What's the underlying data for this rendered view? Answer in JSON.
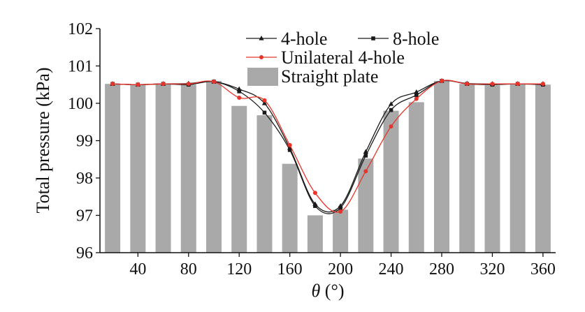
{
  "chart_data": {
    "type": "bar",
    "xlabel_var": "θ",
    "xlabel_unit": " (°)",
    "ylabel": "Total pressure (kPa)",
    "xlim": [
      10,
      370
    ],
    "ylim": [
      96,
      102
    ],
    "xticks": [
      40,
      80,
      120,
      160,
      200,
      240,
      280,
      320,
      360
    ],
    "yticks": [
      96,
      97,
      98,
      99,
      100,
      101,
      102
    ],
    "grid": false,
    "legend_position": "top-right",
    "categories": [
      20,
      40,
      60,
      80,
      100,
      120,
      140,
      160,
      180,
      200,
      220,
      240,
      260,
      280,
      300,
      320,
      340,
      360
    ],
    "series": [
      {
        "name": "4-hole",
        "kind": "line",
        "marker": "triangle",
        "color": "#1a1a1a",
        "values": [
          100.52,
          100.5,
          100.52,
          100.53,
          100.58,
          100.38,
          100.0,
          98.8,
          97.3,
          97.25,
          98.7,
          99.98,
          100.3,
          100.6,
          100.53,
          100.52,
          100.52,
          100.52
        ]
      },
      {
        "name": "8-hole",
        "kind": "line",
        "marker": "square",
        "color": "#1a1a1a",
        "values": [
          100.52,
          100.5,
          100.52,
          100.5,
          100.58,
          100.32,
          99.75,
          98.75,
          97.25,
          97.2,
          98.6,
          99.82,
          100.22,
          100.6,
          100.52,
          100.5,
          100.52,
          100.5
        ]
      },
      {
        "name": "Unilateral 4-hole",
        "kind": "line",
        "marker": "circle",
        "color": "#e8342a",
        "values": [
          100.52,
          100.5,
          100.52,
          100.52,
          100.58,
          100.15,
          100.08,
          98.88,
          97.6,
          97.1,
          98.18,
          99.38,
          100.12,
          100.6,
          100.52,
          100.52,
          100.52,
          100.52
        ]
      },
      {
        "name": "Straight plate",
        "kind": "bar",
        "color": "#a9a9a9",
        "values": [
          100.52,
          100.5,
          100.52,
          100.5,
          100.6,
          99.93,
          99.68,
          98.38,
          97.0,
          97.15,
          98.52,
          99.8,
          100.03,
          100.6,
          100.52,
          100.48,
          100.52,
          100.5
        ]
      }
    ]
  }
}
